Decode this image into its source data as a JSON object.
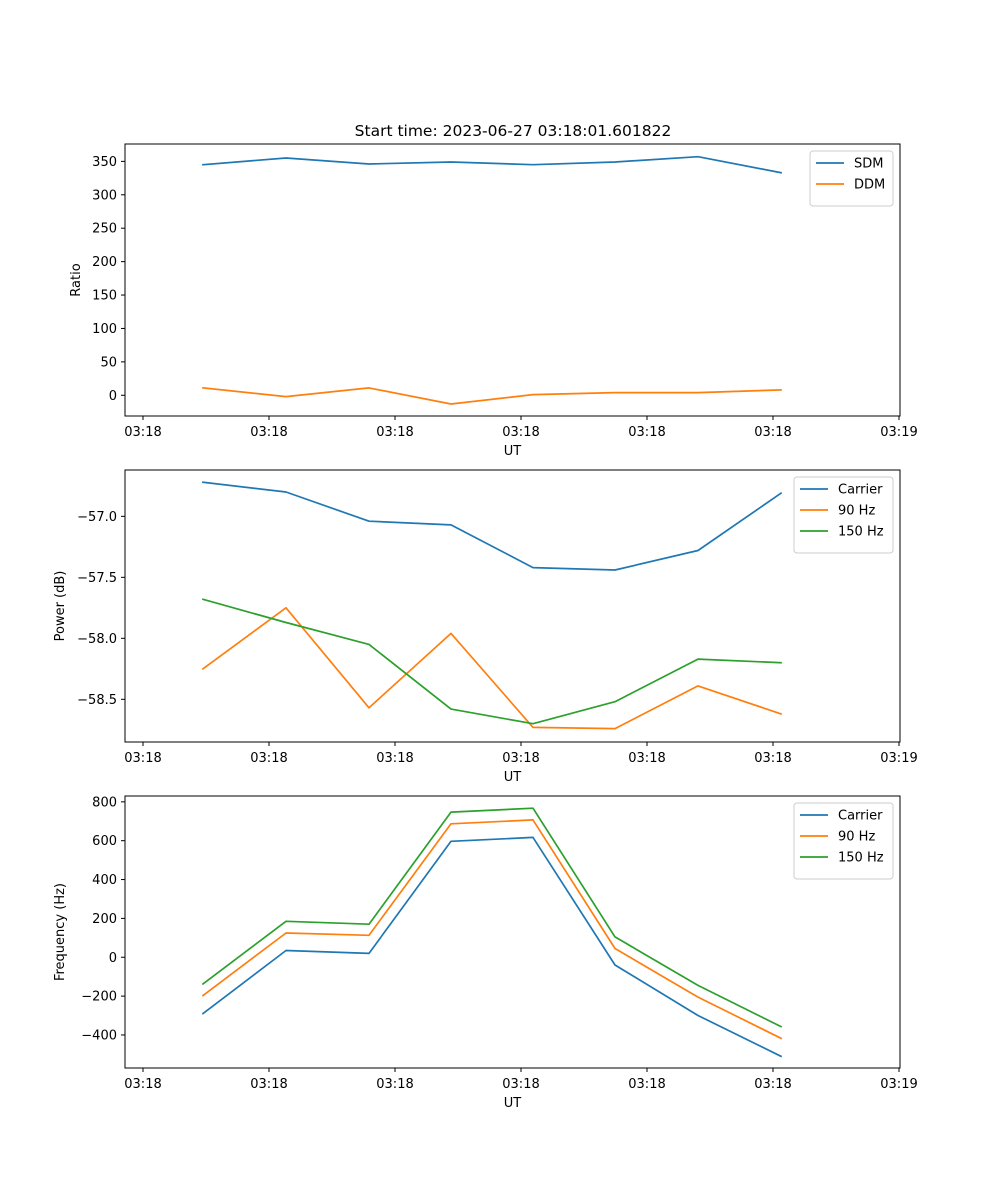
{
  "title": "Start time: 2023-06-27 03:18:01.601822",
  "chart_data": [
    {
      "type": "line",
      "title": "Start time: 2023-06-27 03:18:01.601822",
      "xlabel": "UT",
      "ylabel": "Ratio",
      "x_tick_labels": [
        "03:18",
        "03:18",
        "03:18",
        "03:18",
        "03:18",
        "03:18",
        "03:19"
      ],
      "y_ticks": [
        0,
        50,
        100,
        150,
        200,
        250,
        300,
        350
      ],
      "y_tick_labels": [
        "0",
        "50",
        "100",
        "150",
        "200",
        "250",
        "300",
        "350"
      ],
      "ylim": [
        -31,
        376
      ],
      "legend": "top-right",
      "series": [
        {
          "name": "SDM",
          "color": "#1f77b4",
          "values": [
            345,
            355,
            346,
            349,
            345,
            349,
            357,
            333
          ]
        },
        {
          "name": "DDM",
          "color": "#ff7f0e",
          "values": [
            11,
            -2,
            11,
            -13,
            1,
            4,
            4,
            8
          ]
        }
      ]
    },
    {
      "type": "line",
      "title": "",
      "xlabel": "UT",
      "ylabel": "Power (dB)",
      "x_tick_labels": [
        "03:18",
        "03:18",
        "03:18",
        "03:18",
        "03:18",
        "03:18",
        "03:19"
      ],
      "y_ticks": [
        -58.5,
        -58.0,
        -57.5,
        -57.0
      ],
      "y_tick_labels": [
        "−58.5",
        "−58.0",
        "−57.5",
        "−57.0"
      ],
      "ylim": [
        -58.85,
        -56.62
      ],
      "legend": "top-right",
      "series": [
        {
          "name": "Carrier",
          "color": "#1f77b4",
          "values": [
            -56.72,
            -56.8,
            -57.04,
            -57.07,
            -57.42,
            -57.44,
            -57.28,
            -56.81
          ]
        },
        {
          "name": "90 Hz",
          "color": "#ff7f0e",
          "values": [
            -58.25,
            -57.75,
            -58.57,
            -57.96,
            -58.73,
            -58.74,
            -58.39,
            -58.62
          ]
        },
        {
          "name": "150 Hz",
          "color": "#2ca02c",
          "values": [
            -57.68,
            -57.87,
            -58.05,
            -58.58,
            -58.7,
            -58.52,
            -58.17,
            -58.2
          ]
        }
      ]
    },
    {
      "type": "line",
      "title": "",
      "xlabel": "UT",
      "ylabel": "Frequency (Hz)",
      "x_tick_labels": [
        "03:18",
        "03:18",
        "03:18",
        "03:18",
        "03:18",
        "03:18",
        "03:19"
      ],
      "y_ticks": [
        -400,
        -200,
        0,
        200,
        400,
        600,
        800
      ],
      "y_tick_labels": [
        "−400",
        "−200",
        "0",
        "200",
        "400",
        "600",
        "800"
      ],
      "ylim": [
        -570,
        830
      ],
      "legend": "top-right",
      "series": [
        {
          "name": "Carrier",
          "color": "#1f77b4",
          "values": [
            -290,
            35,
            20,
            597,
            617,
            -40,
            -300,
            -510
          ]
        },
        {
          "name": "90 Hz",
          "color": "#ff7f0e",
          "values": [
            -197,
            125,
            113,
            687,
            707,
            45,
            -205,
            -417
          ]
        },
        {
          "name": "150 Hz",
          "color": "#2ca02c",
          "values": [
            -137,
            185,
            170,
            747,
            767,
            105,
            -145,
            -357
          ]
        }
      ]
    }
  ]
}
